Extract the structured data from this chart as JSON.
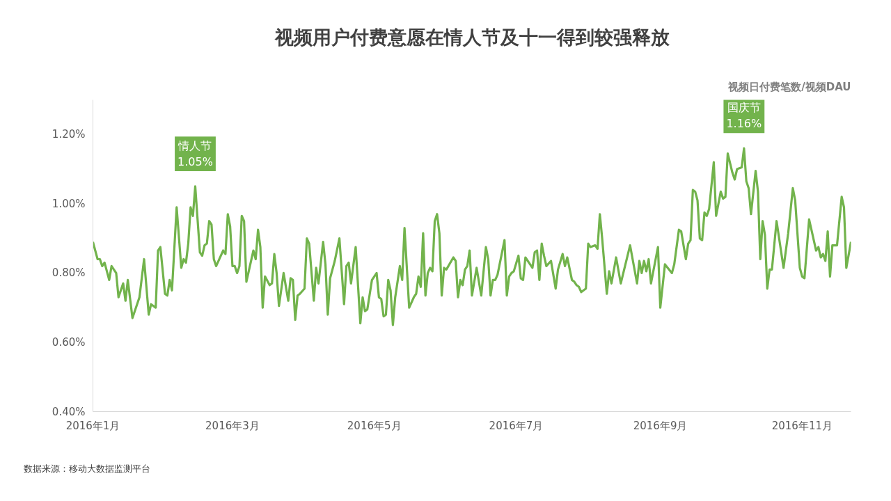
{
  "chart_data": {
    "type": "line",
    "title": "视频用户付费意愿在情人节及十一得到较强释放",
    "ylabel": "视频日付费笔数/视频DAU",
    "x": [
      "2016-01-01",
      "2016-01-03",
      "2016-01-04",
      "2016-01-05",
      "2016-01-06",
      "2016-01-08",
      "2016-01-09",
      "2016-01-11",
      "2016-01-12",
      "2016-01-14",
      "2016-01-15",
      "2016-01-16",
      "2016-01-18",
      "2016-01-20",
      "2016-01-21",
      "2016-01-23",
      "2016-01-25",
      "2016-01-26",
      "2016-01-28",
      "2016-01-29",
      "2016-01-30",
      "2016-02-01",
      "2016-02-02",
      "2016-02-03",
      "2016-02-04",
      "2016-02-06",
      "2016-02-08",
      "2016-02-09",
      "2016-02-10",
      "2016-02-11",
      "2016-02-12",
      "2016-02-13",
      "2016-02-14",
      "2016-02-16",
      "2016-02-17",
      "2016-02-18",
      "2016-02-19",
      "2016-02-20",
      "2016-02-21",
      "2016-02-22",
      "2016-02-23",
      "2016-02-26",
      "2016-02-27",
      "2016-02-28",
      "2016-02-29",
      "2016-03-01",
      "2016-03-02",
      "2016-03-03",
      "2016-03-04",
      "2016-03-05",
      "2016-03-06",
      "2016-03-07",
      "2016-03-10",
      "2016-03-11",
      "2016-03-12",
      "2016-03-13",
      "2016-03-14",
      "2016-03-15",
      "2016-03-17",
      "2016-03-18",
      "2016-03-19",
      "2016-03-20",
      "2016-03-21",
      "2016-03-23",
      "2016-03-25",
      "2016-03-26",
      "2016-03-27",
      "2016-03-28",
      "2016-03-29",
      "2016-03-30",
      "2016-04-01",
      "2016-04-02",
      "2016-04-03",
      "2016-04-05",
      "2016-04-06",
      "2016-04-07",
      "2016-04-09",
      "2016-04-10",
      "2016-04-11",
      "2016-04-12",
      "2016-04-14",
      "2016-04-16",
      "2016-04-18",
      "2016-04-19",
      "2016-04-20",
      "2016-04-21",
      "2016-04-23",
      "2016-04-25",
      "2016-04-26",
      "2016-04-27",
      "2016-04-28",
      "2016-04-30",
      "2016-05-02",
      "2016-05-03",
      "2016-05-04",
      "2016-05-05",
      "2016-05-06",
      "2016-05-07",
      "2016-05-08",
      "2016-05-09",
      "2016-05-10",
      "2016-05-12",
      "2016-05-13",
      "2016-05-14",
      "2016-05-16",
      "2016-05-18",
      "2016-05-19",
      "2016-05-20",
      "2016-05-21",
      "2016-05-22",
      "2016-05-23",
      "2016-05-24",
      "2016-05-25",
      "2016-05-26",
      "2016-05-27",
      "2016-05-28",
      "2016-05-29",
      "2016-05-30",
      "2016-05-31",
      "2016-06-01",
      "2016-06-04",
      "2016-06-05",
      "2016-06-06",
      "2016-06-07",
      "2016-06-08",
      "2016-06-09",
      "2016-06-10",
      "2016-06-11",
      "2016-06-12",
      "2016-06-14",
      "2016-06-16",
      "2016-06-18",
      "2016-06-19",
      "2016-06-20",
      "2016-06-21",
      "2016-06-22",
      "2016-06-23",
      "2016-06-26",
      "2016-06-27",
      "2016-06-28",
      "2016-06-29",
      "2016-06-30",
      "2016-07-02",
      "2016-07-03",
      "2016-07-04",
      "2016-07-05",
      "2016-07-07",
      "2016-07-08",
      "2016-07-09",
      "2016-07-10",
      "2016-07-11",
      "2016-07-12",
      "2016-07-13",
      "2016-07-14",
      "2016-07-16",
      "2016-07-18",
      "2016-07-19",
      "2016-07-21",
      "2016-07-22",
      "2016-07-23",
      "2016-07-25",
      "2016-07-26",
      "2016-07-27",
      "2016-07-28",
      "2016-07-29",
      "2016-07-31",
      "2016-08-01",
      "2016-08-02",
      "2016-08-04",
      "2016-08-05",
      "2016-08-06",
      "2016-08-07",
      "2016-08-09",
      "2016-08-10",
      "2016-08-11",
      "2016-08-13",
      "2016-08-15",
      "2016-08-19",
      "2016-08-22",
      "2016-08-23",
      "2016-08-24",
      "2016-08-25",
      "2016-08-26",
      "2016-08-27",
      "2016-08-28",
      "2016-08-31",
      "2016-09-01",
      "2016-09-03",
      "2016-09-06",
      "2016-09-07",
      "2016-09-09",
      "2016-09-10",
      "2016-09-12",
      "2016-09-13",
      "2016-09-14",
      "2016-09-15",
      "2016-09-16",
      "2016-09-17",
      "2016-09-18",
      "2016-09-19",
      "2016-09-20",
      "2016-09-21",
      "2016-09-22",
      "2016-09-24",
      "2016-09-25",
      "2016-09-27",
      "2016-09-28",
      "2016-09-29",
      "2016-09-30",
      "2016-10-02",
      "2016-10-03",
      "2016-10-04",
      "2016-10-06",
      "2016-10-07",
      "2016-10-08",
      "2016-10-09",
      "2016-10-10",
      "2016-10-12",
      "2016-10-13",
      "2016-10-14",
      "2016-10-15",
      "2016-10-16",
      "2016-10-17",
      "2016-10-18",
      "2016-10-19",
      "2016-10-21",
      "2016-10-24",
      "2016-10-26",
      "2016-10-28",
      "2016-10-29",
      "2016-10-31",
      "2016-11-01",
      "2016-11-02",
      "2016-11-04",
      "2016-11-06",
      "2016-11-07",
      "2016-11-08",
      "2016-11-09",
      "2016-11-10",
      "2016-11-11",
      "2016-11-12",
      "2016-11-13",
      "2016-11-14",
      "2016-11-16",
      "2016-11-18",
      "2016-11-19",
      "2016-11-20",
      "2016-11-22"
    ],
    "series": [
      {
        "color": "#72b34c",
        "values": [
          0.89,
          0.84,
          0.84,
          0.82,
          0.83,
          0.78,
          0.82,
          0.8,
          0.73,
          0.77,
          0.72,
          0.78,
          0.67,
          0.71,
          0.73,
          0.84,
          0.68,
          0.71,
          0.7,
          0.865,
          0.875,
          0.74,
          0.735,
          0.78,
          0.75,
          0.99,
          0.815,
          0.84,
          0.83,
          0.885,
          0.99,
          0.965,
          1.05,
          0.86,
          0.85,
          0.88,
          0.885,
          0.95,
          0.94,
          0.84,
          0.82,
          0.865,
          0.855,
          0.97,
          0.935,
          0.82,
          0.82,
          0.8,
          0.82,
          0.965,
          0.95,
          0.775,
          0.865,
          0.84,
          0.925,
          0.875,
          0.7,
          0.79,
          0.765,
          0.77,
          0.855,
          0.8,
          0.705,
          0.8,
          0.72,
          0.785,
          0.78,
          0.665,
          0.735,
          0.74,
          0.755,
          0.9,
          0.885,
          0.72,
          0.815,
          0.77,
          0.89,
          0.825,
          0.68,
          0.785,
          0.835,
          0.9,
          0.71,
          0.82,
          0.83,
          0.77,
          0.875,
          0.655,
          0.73,
          0.69,
          0.695,
          0.78,
          0.8,
          0.73,
          0.725,
          0.675,
          0.68,
          0.78,
          0.75,
          0.65,
          0.73,
          0.82,
          0.78,
          0.93,
          0.7,
          0.73,
          0.74,
          0.79,
          0.76,
          0.915,
          0.735,
          0.8,
          0.815,
          0.805,
          0.95,
          0.97,
          0.915,
          0.735,
          0.815,
          0.81,
          0.845,
          0.835,
          0.73,
          0.78,
          0.765,
          0.81,
          0.82,
          0.865,
          0.735,
          0.815,
          0.735,
          0.875,
          0.84,
          0.735,
          0.78,
          0.78,
          0.795,
          0.895,
          0.735,
          0.79,
          0.8,
          0.805,
          0.85,
          0.785,
          0.78,
          0.845,
          0.825,
          0.815,
          0.86,
          0.865,
          0.78,
          0.885,
          0.85,
          0.82,
          0.835,
          0.755,
          0.81,
          0.855,
          0.82,
          0.845,
          0.78,
          0.775,
          0.765,
          0.76,
          0.745,
          0.755,
          0.885,
          0.875,
          0.88,
          0.87,
          0.97,
          0.9,
          0.74,
          0.805,
          0.77,
          0.845,
          0.77,
          0.88,
          0.77,
          0.835,
          0.8,
          0.835,
          0.805,
          0.84,
          0.77,
          0.875,
          0.7,
          0.825,
          0.8,
          0.825,
          0.925,
          0.92,
          0.84,
          0.885,
          0.895,
          1.04,
          1.035,
          1.01,
          0.9,
          0.895,
          0.975,
          0.965,
          0.985,
          1.12,
          0.965,
          1.035,
          1.015,
          1.02,
          1.145,
          1.09,
          1.07,
          1.1,
          1.105,
          1.16,
          1.065,
          1.045,
          0.97,
          1.095,
          1.035,
          0.84,
          0.95,
          0.91,
          0.755,
          0.81,
          0.81,
          0.95,
          0.815,
          0.915,
          1.045,
          1.01,
          0.815,
          0.79,
          0.785,
          0.955,
          0.895,
          0.865,
          0.875,
          0.845,
          0.855,
          0.835,
          0.92,
          0.79,
          0.88,
          0.88,
          1.02,
          0.99,
          0.815,
          0.89
        ]
      }
    ],
    "xlim": [
      "2016-01-01",
      "2016-11-22"
    ],
    "xticks": [
      {
        "value": "2016-01-01",
        "label": "2016年1月"
      },
      {
        "value": "2016-03-01",
        "label": "2016年3月"
      },
      {
        "value": "2016-05-01",
        "label": "2016年5月"
      },
      {
        "value": "2016-07-01",
        "label": "2016年7月"
      },
      {
        "value": "2016-09-01",
        "label": "2016年9月"
      },
      {
        "value": "2016-11-01",
        "label": "2016年11月"
      }
    ],
    "ylim": [
      0.4,
      1.3
    ],
    "yticks": [
      {
        "value": 0.4,
        "label": "0.40%"
      },
      {
        "value": 0.6,
        "label": "0.60%"
      },
      {
        "value": 0.8,
        "label": "0.80%"
      },
      {
        "value": 1.0,
        "label": "1.00%"
      },
      {
        "value": 1.2,
        "label": "1.20%"
      }
    ],
    "annotations": [
      {
        "text": "情人节\n1.05%",
        "x": "2016-02-14",
        "y": 1.05
      },
      {
        "text": "国庆节\n1.16%",
        "x": "2016-10-07",
        "y": 1.16
      },
      "数据来源：移动大数据监测平台"
    ],
    "grid": false,
    "line_style": "solid"
  }
}
